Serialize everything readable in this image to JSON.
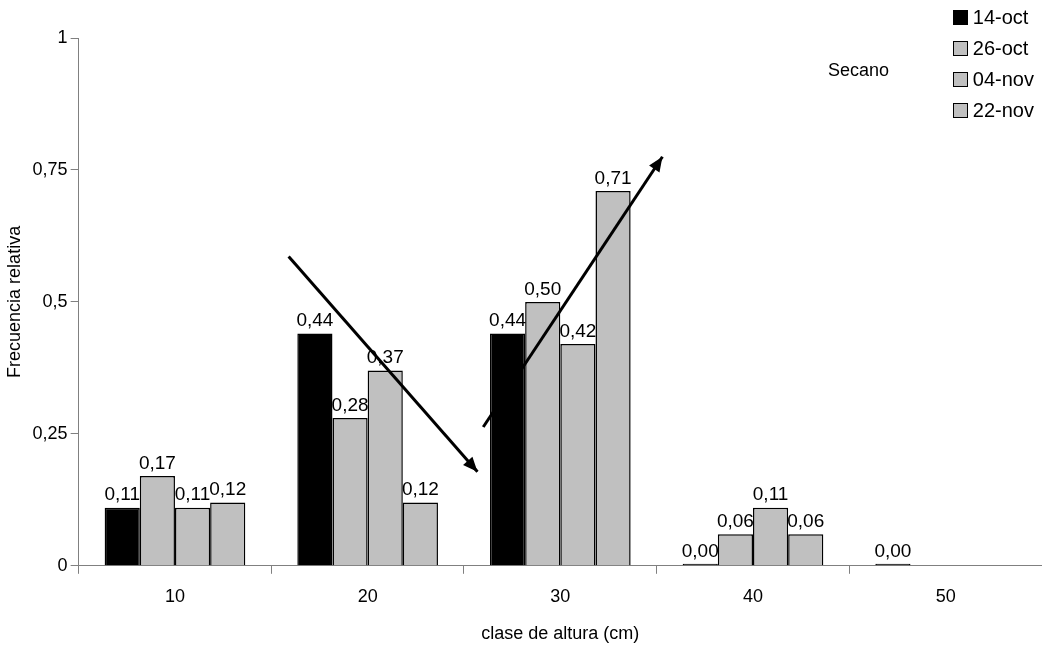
{
  "chart_data": {
    "type": "bar",
    "xlabel": "clase de altura (cm)",
    "ylabel": "Frecuencia relativa",
    "categories": [
      "10",
      "20",
      "30",
      "40",
      "50"
    ],
    "ylim": [
      0,
      1
    ],
    "yticks": [
      0,
      {
        "value": 0.25,
        "label": "0,25"
      },
      {
        "value": 0.5,
        "label": "0,5"
      },
      {
        "value": 0.75,
        "label": "0,75"
      },
      1
    ],
    "grid": false,
    "legend": "top right",
    "annotations": [
      "Secano"
    ],
    "series": [
      {
        "name": "14-oct",
        "color": "#000000",
        "values": [
          0.11,
          0.44,
          0.44,
          0,
          0
        ],
        "value_labels": [
          "0,11",
          "0,44",
          "0,44",
          "0,00",
          "0,00"
        ]
      },
      {
        "name": "26-oct",
        "color": "#c0c0c0",
        "values": [
          0.17,
          0.28,
          0.5,
          0.06,
          null
        ],
        "value_labels": [
          "0,17",
          "0,28",
          "0,50",
          "0,06",
          null
        ]
      },
      {
        "name": "04-nov",
        "color": "#c0c0c0",
        "values": [
          0.11,
          0.37,
          0.42,
          0.11,
          null
        ],
        "value_labels": [
          "0,11",
          "0,37",
          "0,42",
          "0,11",
          null
        ]
      },
      {
        "name": "22-nov",
        "color": "#c0c0c0",
        "values": [
          0.12,
          0.12,
          0.71,
          0.06,
          null
        ],
        "value_labels": [
          "0,12",
          "0,12",
          "0,71",
          "0,06",
          null
        ]
      }
    ]
  }
}
